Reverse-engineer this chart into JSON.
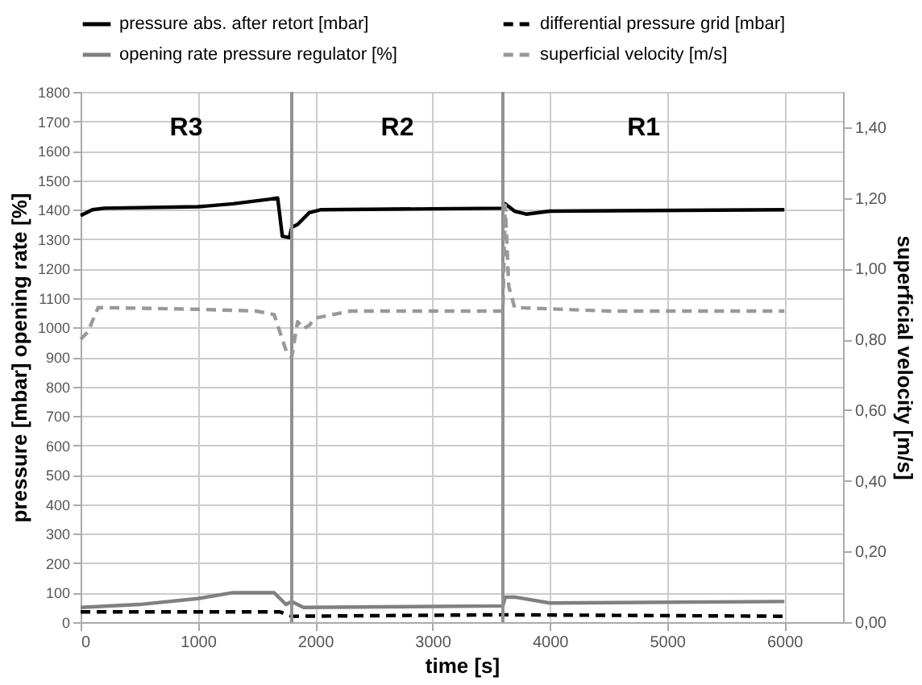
{
  "chart_data": {
    "type": "line",
    "xlabel": "time [s]",
    "ylabel": "pressure [mbar]   opening rate [%]",
    "y2label": "superficial velocity [m/s]",
    "xlim": [
      0,
      6500
    ],
    "xticks": [
      0,
      1000,
      2000,
      3000,
      4000,
      5000,
      6000
    ],
    "ylim": [
      0,
      1800
    ],
    "yticks": [
      0,
      100,
      200,
      300,
      400,
      500,
      600,
      700,
      800,
      900,
      1000,
      1100,
      1200,
      1300,
      1400,
      1500,
      1600,
      1700,
      1800
    ],
    "y2lim": [
      0,
      1.5
    ],
    "y2ticks": [
      {
        "value": 0,
        "label": "0,00"
      },
      {
        "value": 0.2,
        "label": "0,20"
      },
      {
        "value": 0.4,
        "label": "0,40"
      },
      {
        "value": 0.6,
        "label": "0,60"
      },
      {
        "value": 0.8,
        "label": "0,80"
      },
      {
        "value": 1.0,
        "label": "1,00"
      },
      {
        "value": 1.2,
        "label": "1,20"
      },
      {
        "value": 1.4,
        "label": "1,40"
      }
    ],
    "grid": true,
    "legend": "top",
    "marker": "none",
    "series": [
      {
        "name": "pressure abs. after retort [mbar]",
        "color": "#000000",
        "line_style": "solid",
        "x": [
          0,
          100,
          200,
          1000,
          1300,
          1600,
          1680,
          1720,
          1780,
          1800,
          1850,
          1950,
          2050,
          3600,
          3620,
          3700,
          3800,
          4000,
          6000
        ],
        "values": [
          1380,
          1400,
          1405,
          1410,
          1420,
          1435,
          1440,
          1310,
          1305,
          1340,
          1350,
          1390,
          1400,
          1405,
          1420,
          1395,
          1385,
          1395,
          1400
        ]
      },
      {
        "name": "differential pressure grid [mbar]",
        "color": "#000000",
        "line_style": "dashed",
        "x": [
          0,
          1700,
          1800,
          3600,
          6000
        ],
        "values": [
          35,
          35,
          20,
          25,
          20
        ]
      },
      {
        "name": "opening rate pressure regulator [%]",
        "color": "#808080",
        "line_style": "solid",
        "x": [
          0,
          500,
          1000,
          1300,
          1650,
          1750,
          1800,
          1900,
          3600,
          3620,
          3700,
          4000,
          6000
        ],
        "values": [
          50,
          60,
          80,
          100,
          100,
          60,
          70,
          50,
          55,
          85,
          85,
          65,
          70
        ]
      },
      {
        "name": "superficial velocity [m/s]",
        "color": "#999999",
        "line_style": "dashed",
        "axis": "y2",
        "x": [
          0,
          60,
          150,
          1000,
          1500,
          1650,
          1700,
          1760,
          1800,
          1850,
          1900,
          1950,
          2000,
          2300,
          3600,
          3620,
          3650,
          3700,
          4500,
          6000
        ],
        "values": [
          0.8,
          0.82,
          0.89,
          0.885,
          0.88,
          0.87,
          0.82,
          0.76,
          0.75,
          0.85,
          0.83,
          0.84,
          0.86,
          0.88,
          0.88,
          1.18,
          0.95,
          0.89,
          0.88,
          0.88
        ]
      }
    ],
    "ref_lines": [
      {
        "axis": "x",
        "value": 1800,
        "color": "#909090",
        "line_style": "solid"
      },
      {
        "axis": "x",
        "value": 3600,
        "color": "#909090",
        "line_style": "solid"
      }
    ],
    "annotations": [
      "R3",
      "R2",
      "R1"
    ]
  }
}
